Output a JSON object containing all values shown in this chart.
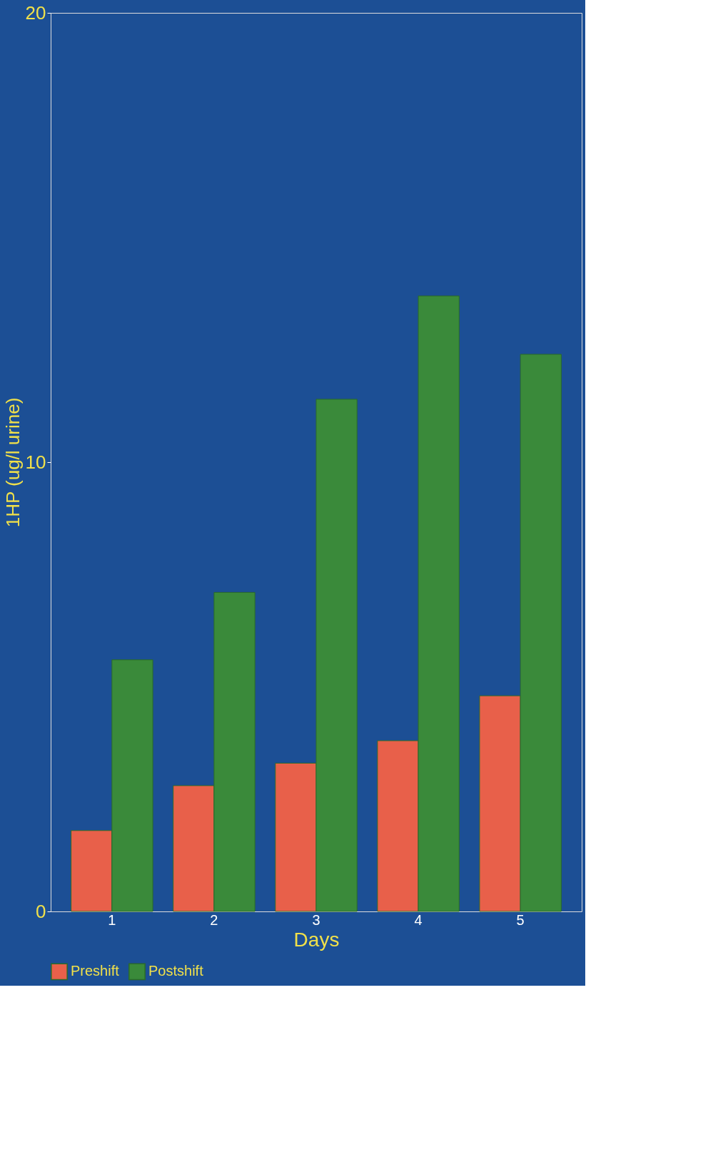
{
  "chart_data": {
    "type": "bar",
    "xlabel": "Days",
    "ylabel": "1HP (ug/l urine)",
    "categories": [
      "1",
      "2",
      "3",
      "4",
      "5"
    ],
    "series": [
      {
        "name": "Preshift",
        "color": "#e8604a",
        "values": [
          1.8,
          2.8,
          3.3,
          3.8,
          4.8
        ]
      },
      {
        "name": "Postshift",
        "color": "#3a8a3a",
        "values": [
          5.6,
          7.1,
          11.4,
          13.7,
          12.4
        ]
      }
    ],
    "ylim": [
      0,
      20
    ],
    "yticks": [
      0,
      10,
      20
    ],
    "grid": false,
    "legend": "bottom"
  }
}
